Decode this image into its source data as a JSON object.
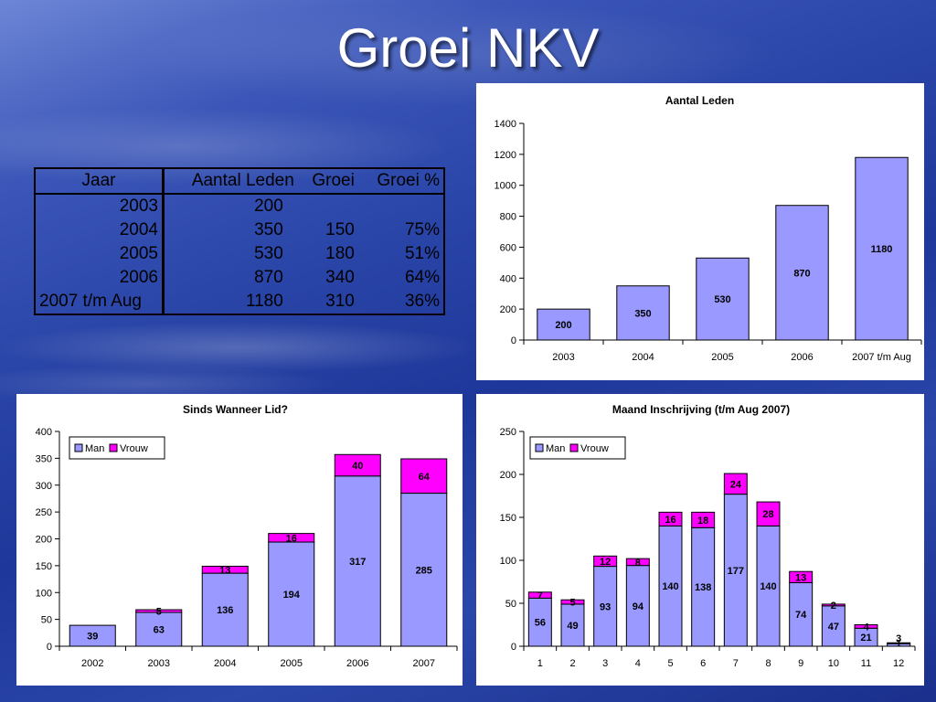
{
  "slide": {
    "title": "Groei NKV"
  },
  "table": {
    "headers": [
      "Jaar",
      "Aantal Leden",
      "Groei",
      "Groei %"
    ],
    "rows": [
      [
        "2003",
        "200",
        "",
        ""
      ],
      [
        "2004",
        "350",
        "150",
        "75%"
      ],
      [
        "2005",
        "530",
        "180",
        "51%"
      ],
      [
        "2006",
        "870",
        "340",
        "64%"
      ],
      [
        "2007 t/m Aug",
        "1180",
        "310",
        "36%"
      ]
    ]
  },
  "chart_data": [
    {
      "type": "bar",
      "title": "Aantal Leden",
      "categories": [
        "2003",
        "2004",
        "2005",
        "2006",
        "2007 t/m Aug"
      ],
      "values": [
        200,
        350,
        530,
        870,
        1180
      ],
      "ylim": [
        0,
        1400
      ],
      "yticks": [
        0,
        200,
        400,
        600,
        800,
        1000,
        1200,
        1400
      ],
      "colors": {
        "fill": "#9999ff",
        "stroke": "#000000"
      },
      "grid": false,
      "legend": "none"
    },
    {
      "type": "bar",
      "stacked": true,
      "title": "Sinds Wanneer Lid?",
      "categories": [
        "2002",
        "2003",
        "2004",
        "2005",
        "2006",
        "2007"
      ],
      "series": [
        {
          "name": "Man",
          "values": [
            39,
            63,
            136,
            194,
            317,
            285
          ],
          "color": "#9999ff",
          "labels": [
            "39",
            "63",
            "136",
            "194",
            "317",
            "285"
          ]
        },
        {
          "name": "Vrouw",
          "values": [
            0,
            5,
            13,
            16,
            40,
            64
          ],
          "color": "#ff00ff",
          "labels": [
            "",
            "5",
            "13",
            "16",
            "40",
            "64"
          ]
        }
      ],
      "ylim": [
        0,
        400
      ],
      "yticks": [
        0,
        50,
        100,
        150,
        200,
        250,
        300,
        350,
        400
      ],
      "grid": false,
      "legend": "top-left"
    },
    {
      "type": "bar",
      "stacked": true,
      "title": "Maand Inschrijving (t/m Aug 2007)",
      "categories": [
        "1",
        "2",
        "3",
        "4",
        "5",
        "6",
        "7",
        "8",
        "9",
        "10",
        "11",
        "12"
      ],
      "series": [
        {
          "name": "Man",
          "values": [
            56,
            49,
            93,
            94,
            140,
            138,
            177,
            140,
            74,
            47,
            21,
            3
          ],
          "color": "#9999ff",
          "labels": [
            "56",
            "49",
            "93",
            "94",
            "140",
            "138",
            "177",
            "140",
            "74",
            "47",
            "21",
            "3"
          ]
        },
        {
          "name": "Vrouw",
          "values": [
            7,
            5,
            12,
            8,
            16,
            18,
            24,
            28,
            13,
            2,
            4,
            1
          ],
          "color": "#ff00ff",
          "labels": [
            "7",
            "5",
            "12",
            "8",
            "16",
            "18",
            "24",
            "28",
            "13",
            "2",
            "4",
            "1"
          ]
        }
      ],
      "ylim": [
        0,
        250
      ],
      "yticks": [
        0,
        50,
        100,
        150,
        200,
        250
      ],
      "grid": false,
      "legend": "top-left"
    }
  ]
}
